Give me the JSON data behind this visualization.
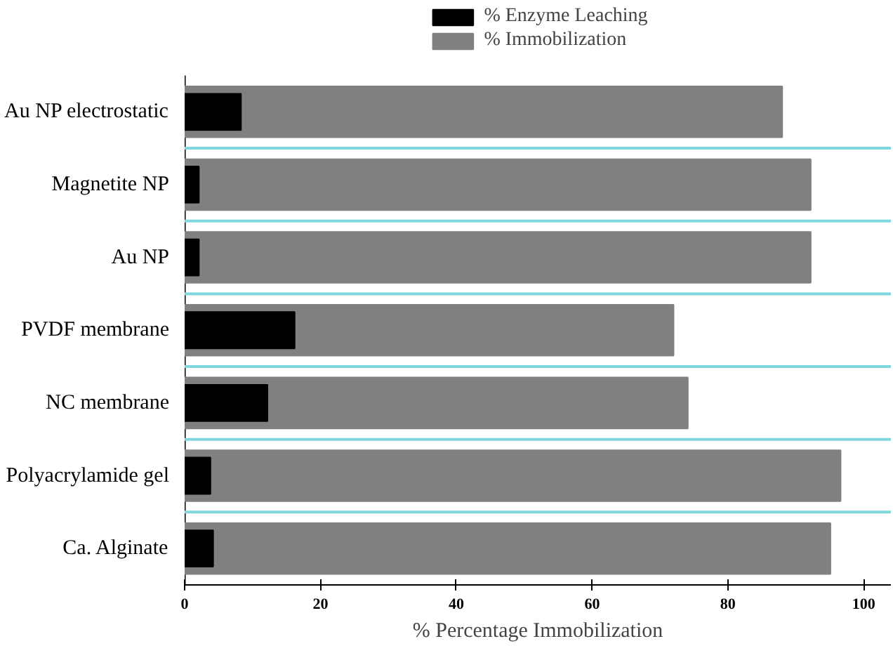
{
  "chart_data": {
    "type": "bar",
    "orientation": "horizontal",
    "xlabel": "% Percentage Immobilization",
    "categories": [
      "Au NP electrostatic",
      "Magnetite NP",
      "Au NP",
      "PVDF membrane",
      "NC membrane",
      "Polyacrylamide gel",
      "Ca. Alginate"
    ],
    "series": [
      {
        "name": "% Enzyme Leaching",
        "color": "#000000",
        "values": [
          8.3,
          2.1,
          2.1,
          16.2,
          12.2,
          3.8,
          4.2
        ]
      },
      {
        "name": "% Immobilization",
        "color": "#808080",
        "values": [
          88.0,
          92.2,
          92.2,
          72.0,
          74.1,
          96.6,
          95.1
        ]
      }
    ],
    "xlim": [
      0,
      104
    ],
    "xticks": [
      0,
      20,
      40,
      60,
      80,
      100
    ],
    "grid": "y",
    "legend": "top"
  }
}
